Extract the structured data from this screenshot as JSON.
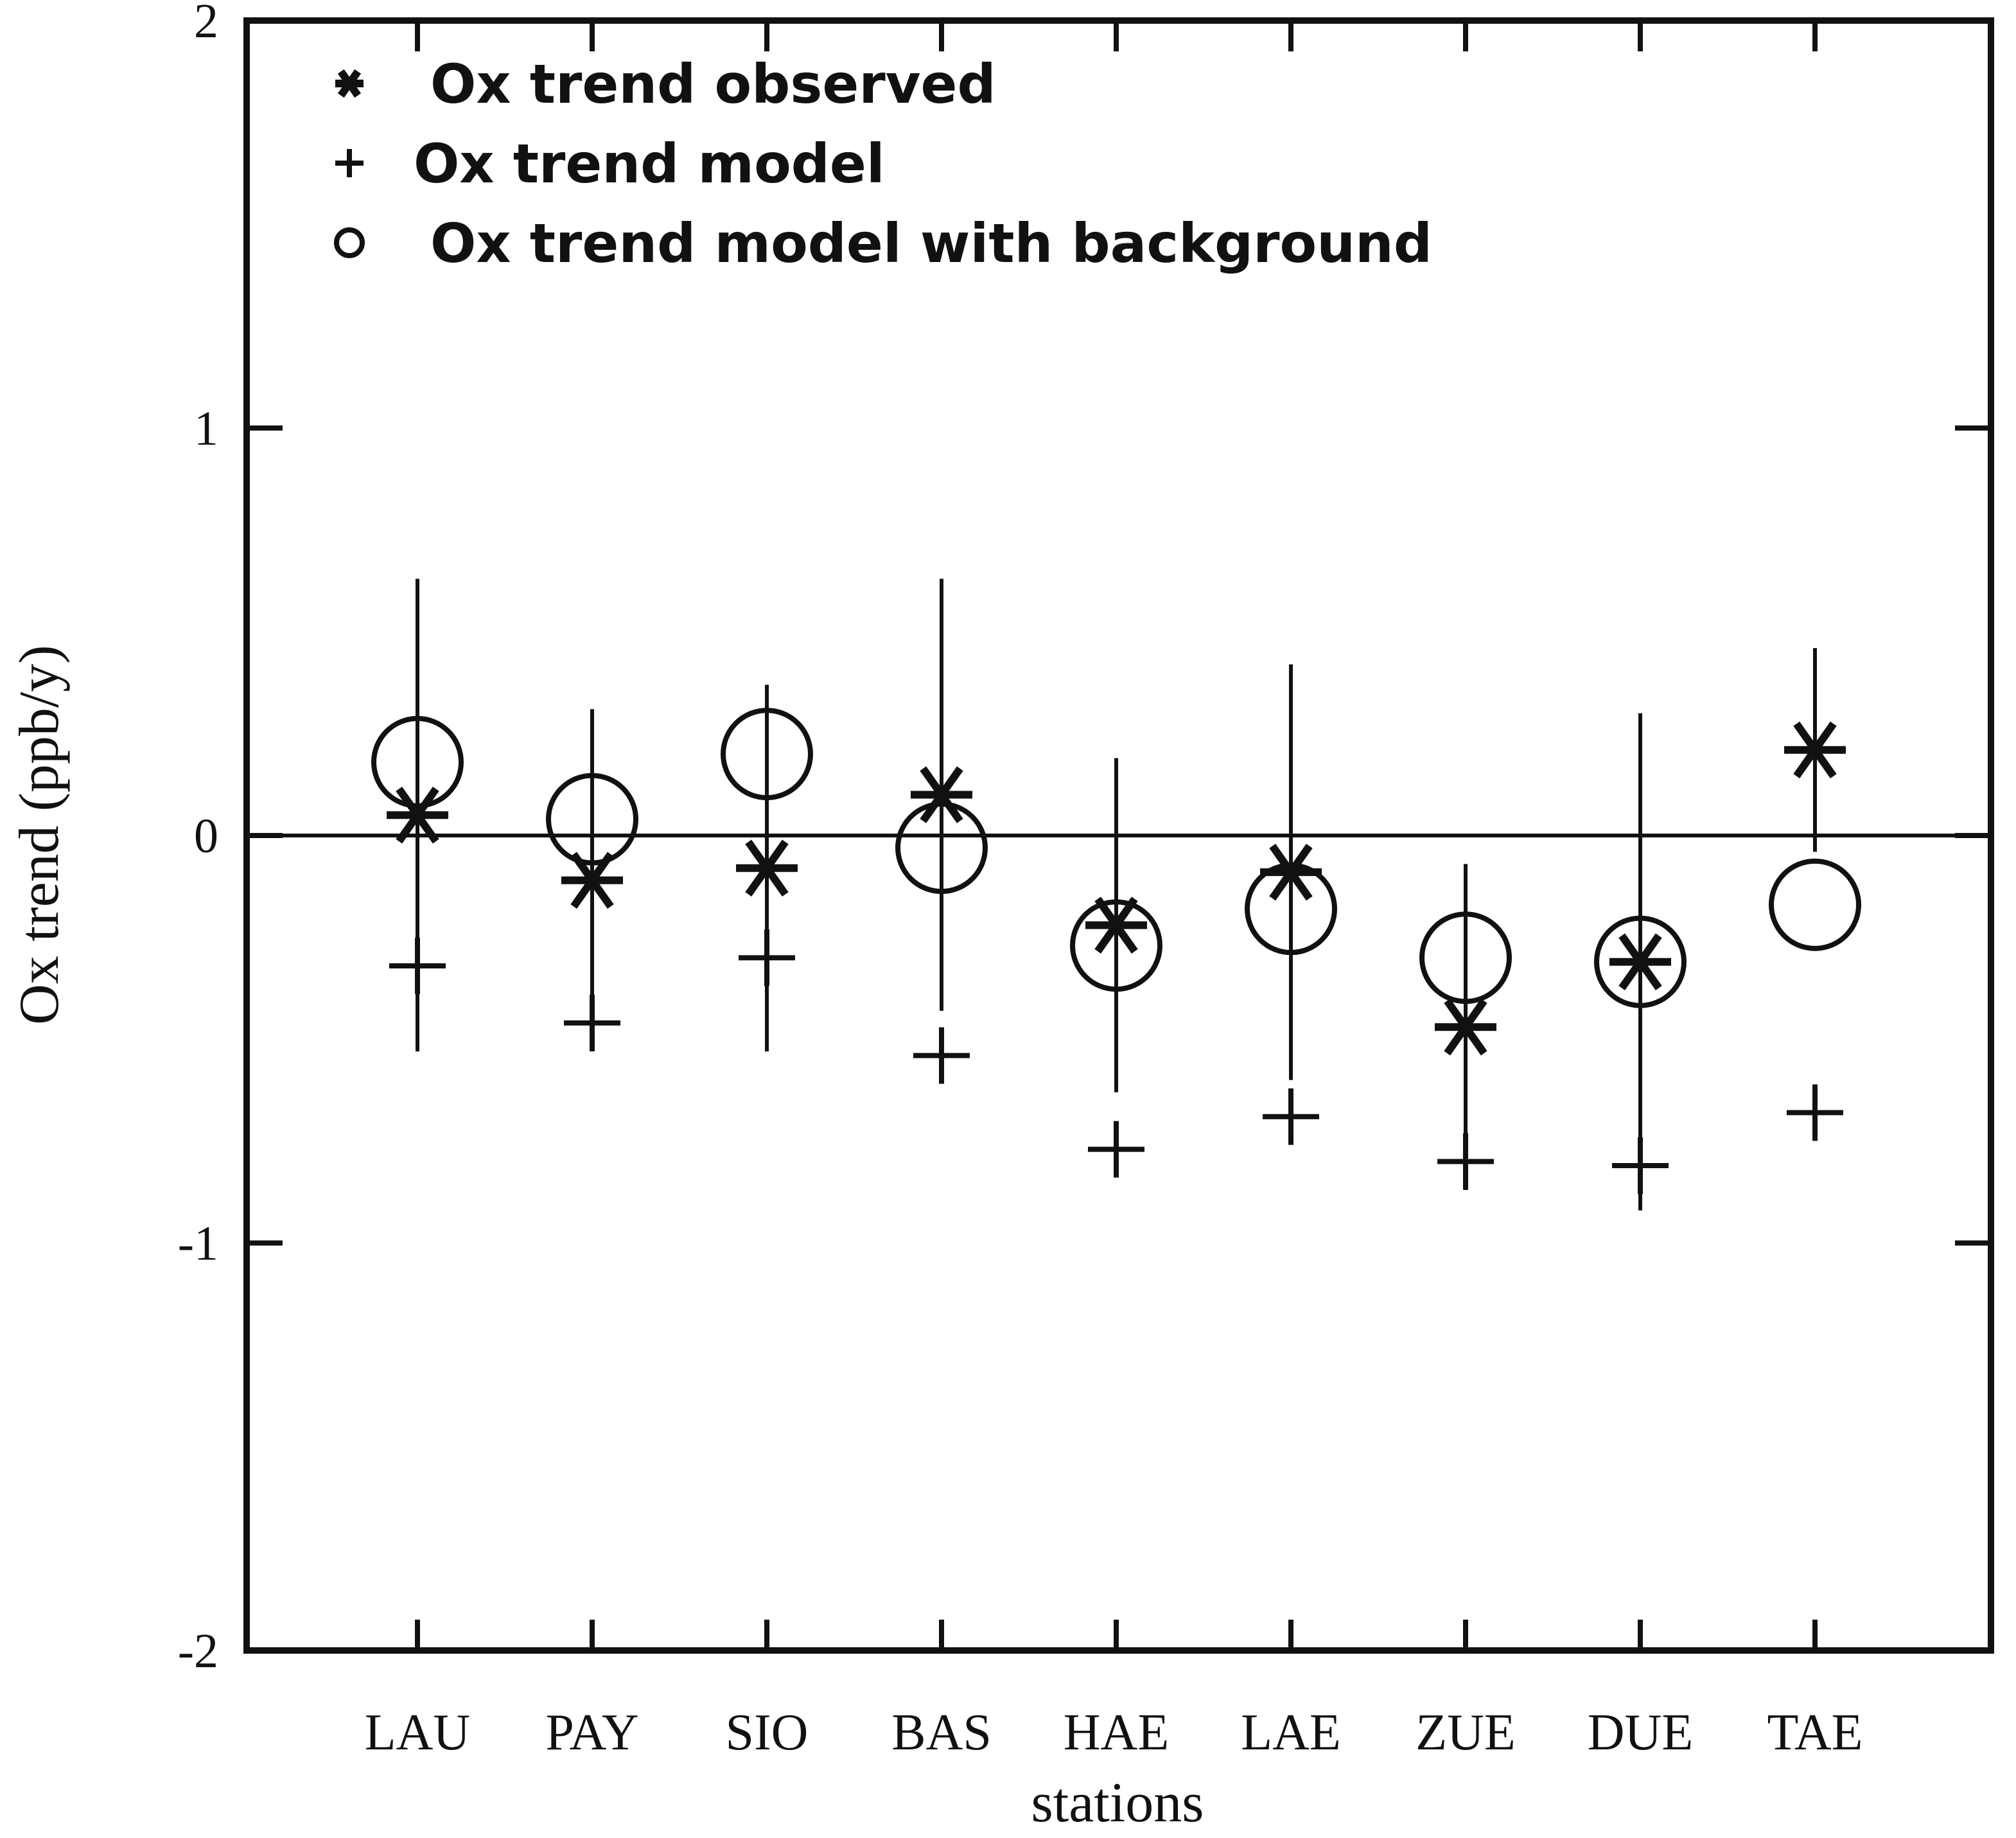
{
  "chart_data": {
    "type": "scatter",
    "y_label": "Ox trend (ppb/y)",
    "x_label": "stations",
    "categories": [
      "LAU",
      "PAY",
      "SIO",
      "BAS",
      "HAE",
      "LAE",
      "ZUE",
      "DUE",
      "TAE"
    ],
    "ylim": [
      -2,
      2
    ],
    "yticks": [
      -2,
      -1,
      0,
      1,
      2
    ],
    "zero_line": true,
    "legend": "upper left",
    "series": [
      {
        "name": "Ox trend observed",
        "marker": "asterisk",
        "color": "#111111",
        "values": [
          0.05,
          -0.11,
          -0.08,
          0.1,
          -0.22,
          -0.09,
          -0.47,
          -0.31,
          0.21
        ],
        "errors": [
          0.58,
          0.42,
          0.45,
          0.53,
          0.41,
          0.51,
          0.4,
          0.61,
          0.25
        ]
      },
      {
        "name": "Ox trend model",
        "marker": "plus",
        "color": "#111111",
        "values": [
          -0.32,
          -0.46,
          -0.3,
          -0.54,
          -0.77,
          -0.69,
          -0.8,
          -0.81,
          -0.68
        ]
      },
      {
        "name": "Ox trend model with background",
        "marker": "circle",
        "color": "#111111",
        "values": [
          0.18,
          0.04,
          0.2,
          -0.03,
          -0.27,
          -0.18,
          -0.3,
          -0.31,
          -0.17
        ]
      }
    ]
  }
}
